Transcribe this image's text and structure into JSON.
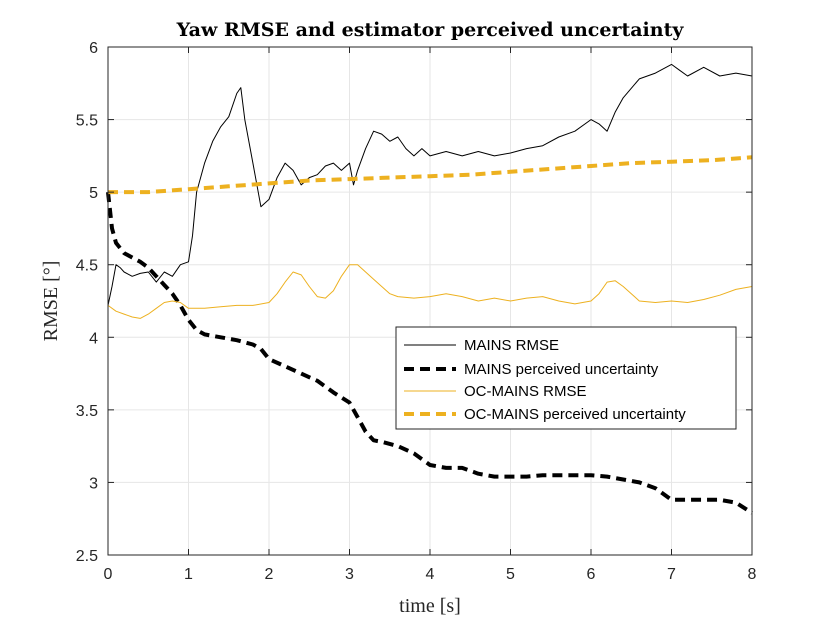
{
  "chart_data": {
    "type": "line",
    "title": "Yaw RMSE and estimator perceived uncertainty",
    "xlabel": "time [s]",
    "ylabel": "RMSE [°]",
    "xlim": [
      0,
      8
    ],
    "ylim": [
      2.5,
      6
    ],
    "xticks": [
      0,
      1,
      2,
      3,
      4,
      5,
      6,
      7,
      8
    ],
    "xtick_labels": [
      "0",
      "1",
      "2",
      "3",
      "4",
      "5",
      "6",
      "7",
      "8"
    ],
    "yticks": [
      2.5,
      3,
      3.5,
      4,
      4.5,
      5,
      5.5,
      6
    ],
    "ytick_labels": [
      "2.5",
      "3",
      "3.5",
      "4",
      "4.5",
      "5",
      "5.5",
      "6"
    ],
    "grid": true,
    "legend_position": "center-right",
    "series": [
      {
        "name": "MAINS RMSE",
        "color": "#000000",
        "style": "solid",
        "x": [
          0,
          0.05,
          0.1,
          0.15,
          0.2,
          0.3,
          0.4,
          0.5,
          0.6,
          0.7,
          0.8,
          0.9,
          1.0,
          1.05,
          1.1,
          1.2,
          1.3,
          1.4,
          1.5,
          1.6,
          1.65,
          1.7,
          1.8,
          1.9,
          2.0,
          2.1,
          2.2,
          2.3,
          2.4,
          2.5,
          2.6,
          2.7,
          2.8,
          2.9,
          3.0,
          3.05,
          3.1,
          3.2,
          3.3,
          3.4,
          3.5,
          3.6,
          3.7,
          3.8,
          3.9,
          4.0,
          4.2,
          4.4,
          4.6,
          4.8,
          5.0,
          5.2,
          5.4,
          5.6,
          5.8,
          6.0,
          6.1,
          6.2,
          6.3,
          6.4,
          6.6,
          6.8,
          7.0,
          7.1,
          7.2,
          7.4,
          7.6,
          7.8,
          8.0
        ],
        "y": [
          4.22,
          4.35,
          4.5,
          4.48,
          4.45,
          4.42,
          4.44,
          4.45,
          4.38,
          4.45,
          4.42,
          4.5,
          4.52,
          4.7,
          5.0,
          5.2,
          5.35,
          5.45,
          5.52,
          5.68,
          5.72,
          5.5,
          5.2,
          4.9,
          4.95,
          5.1,
          5.2,
          5.15,
          5.05,
          5.1,
          5.12,
          5.18,
          5.2,
          5.15,
          5.2,
          5.05,
          5.15,
          5.3,
          5.42,
          5.4,
          5.35,
          5.38,
          5.3,
          5.25,
          5.3,
          5.25,
          5.28,
          5.25,
          5.28,
          5.25,
          5.27,
          5.3,
          5.32,
          5.38,
          5.42,
          5.5,
          5.47,
          5.42,
          5.55,
          5.65,
          5.78,
          5.82,
          5.88,
          5.84,
          5.8,
          5.86,
          5.8,
          5.82,
          5.8
        ]
      },
      {
        "name": "MAINS perceived uncertainty",
        "color": "#000000",
        "style": "dashed",
        "x": [
          0,
          0.05,
          0.1,
          0.2,
          0.3,
          0.4,
          0.5,
          0.6,
          0.7,
          0.8,
          0.9,
          1.0,
          1.1,
          1.2,
          1.4,
          1.6,
          1.8,
          1.9,
          2.0,
          2.2,
          2.4,
          2.6,
          2.8,
          3.0,
          3.1,
          3.2,
          3.3,
          3.4,
          3.6,
          3.8,
          4.0,
          4.2,
          4.4,
          4.6,
          4.8,
          5.0,
          5.2,
          5.4,
          5.6,
          5.8,
          6.0,
          6.2,
          6.4,
          6.6,
          6.8,
          7.0,
          7.2,
          7.4,
          7.6,
          7.8,
          8.0
        ],
        "y": [
          5.0,
          4.75,
          4.65,
          4.58,
          4.55,
          4.52,
          4.48,
          4.42,
          4.36,
          4.3,
          4.22,
          4.12,
          4.05,
          4.02,
          4.0,
          3.98,
          3.95,
          3.92,
          3.85,
          3.8,
          3.75,
          3.7,
          3.62,
          3.55,
          3.45,
          3.35,
          3.29,
          3.28,
          3.25,
          3.2,
          3.12,
          3.1,
          3.1,
          3.06,
          3.04,
          3.04,
          3.04,
          3.05,
          3.05,
          3.05,
          3.05,
          3.04,
          3.02,
          3.0,
          2.96,
          2.88,
          2.88,
          2.88,
          2.88,
          2.86,
          2.79
        ]
      },
      {
        "name": "OC-MAINS RMSE",
        "color": "#EDB120",
        "style": "solid",
        "x": [
          0,
          0.1,
          0.2,
          0.3,
          0.4,
          0.5,
          0.6,
          0.7,
          0.8,
          0.9,
          1.0,
          1.2,
          1.4,
          1.6,
          1.8,
          2.0,
          2.1,
          2.2,
          2.3,
          2.4,
          2.5,
          2.6,
          2.7,
          2.8,
          2.9,
          3.0,
          3.1,
          3.2,
          3.3,
          3.4,
          3.5,
          3.6,
          3.8,
          4.0,
          4.2,
          4.4,
          4.6,
          4.8,
          5.0,
          5.2,
          5.4,
          5.6,
          5.8,
          6.0,
          6.1,
          6.2,
          6.3,
          6.4,
          6.5,
          6.6,
          6.8,
          7.0,
          7.2,
          7.4,
          7.6,
          7.8,
          8.0
        ],
        "y": [
          4.22,
          4.18,
          4.16,
          4.14,
          4.13,
          4.16,
          4.2,
          4.24,
          4.25,
          4.24,
          4.2,
          4.2,
          4.21,
          4.22,
          4.22,
          4.24,
          4.3,
          4.38,
          4.45,
          4.43,
          4.35,
          4.28,
          4.27,
          4.32,
          4.42,
          4.5,
          4.5,
          4.45,
          4.4,
          4.35,
          4.3,
          4.28,
          4.27,
          4.28,
          4.3,
          4.28,
          4.25,
          4.27,
          4.25,
          4.27,
          4.28,
          4.25,
          4.23,
          4.25,
          4.3,
          4.38,
          4.39,
          4.35,
          4.3,
          4.25,
          4.24,
          4.25,
          4.24,
          4.26,
          4.29,
          4.33,
          4.35
        ]
      },
      {
        "name": "OC-MAINS perceived uncertainty",
        "color": "#EDB120",
        "style": "dashed",
        "x": [
          0,
          0.5,
          1.0,
          1.5,
          2.0,
          2.5,
          3.0,
          3.5,
          4.0,
          4.5,
          5.0,
          5.5,
          6.0,
          6.5,
          7.0,
          7.5,
          8.0
        ],
        "y": [
          5.0,
          5.0,
          5.02,
          5.04,
          5.06,
          5.08,
          5.09,
          5.1,
          5.11,
          5.12,
          5.14,
          5.16,
          5.18,
          5.2,
          5.21,
          5.22,
          5.24
        ]
      }
    ]
  }
}
